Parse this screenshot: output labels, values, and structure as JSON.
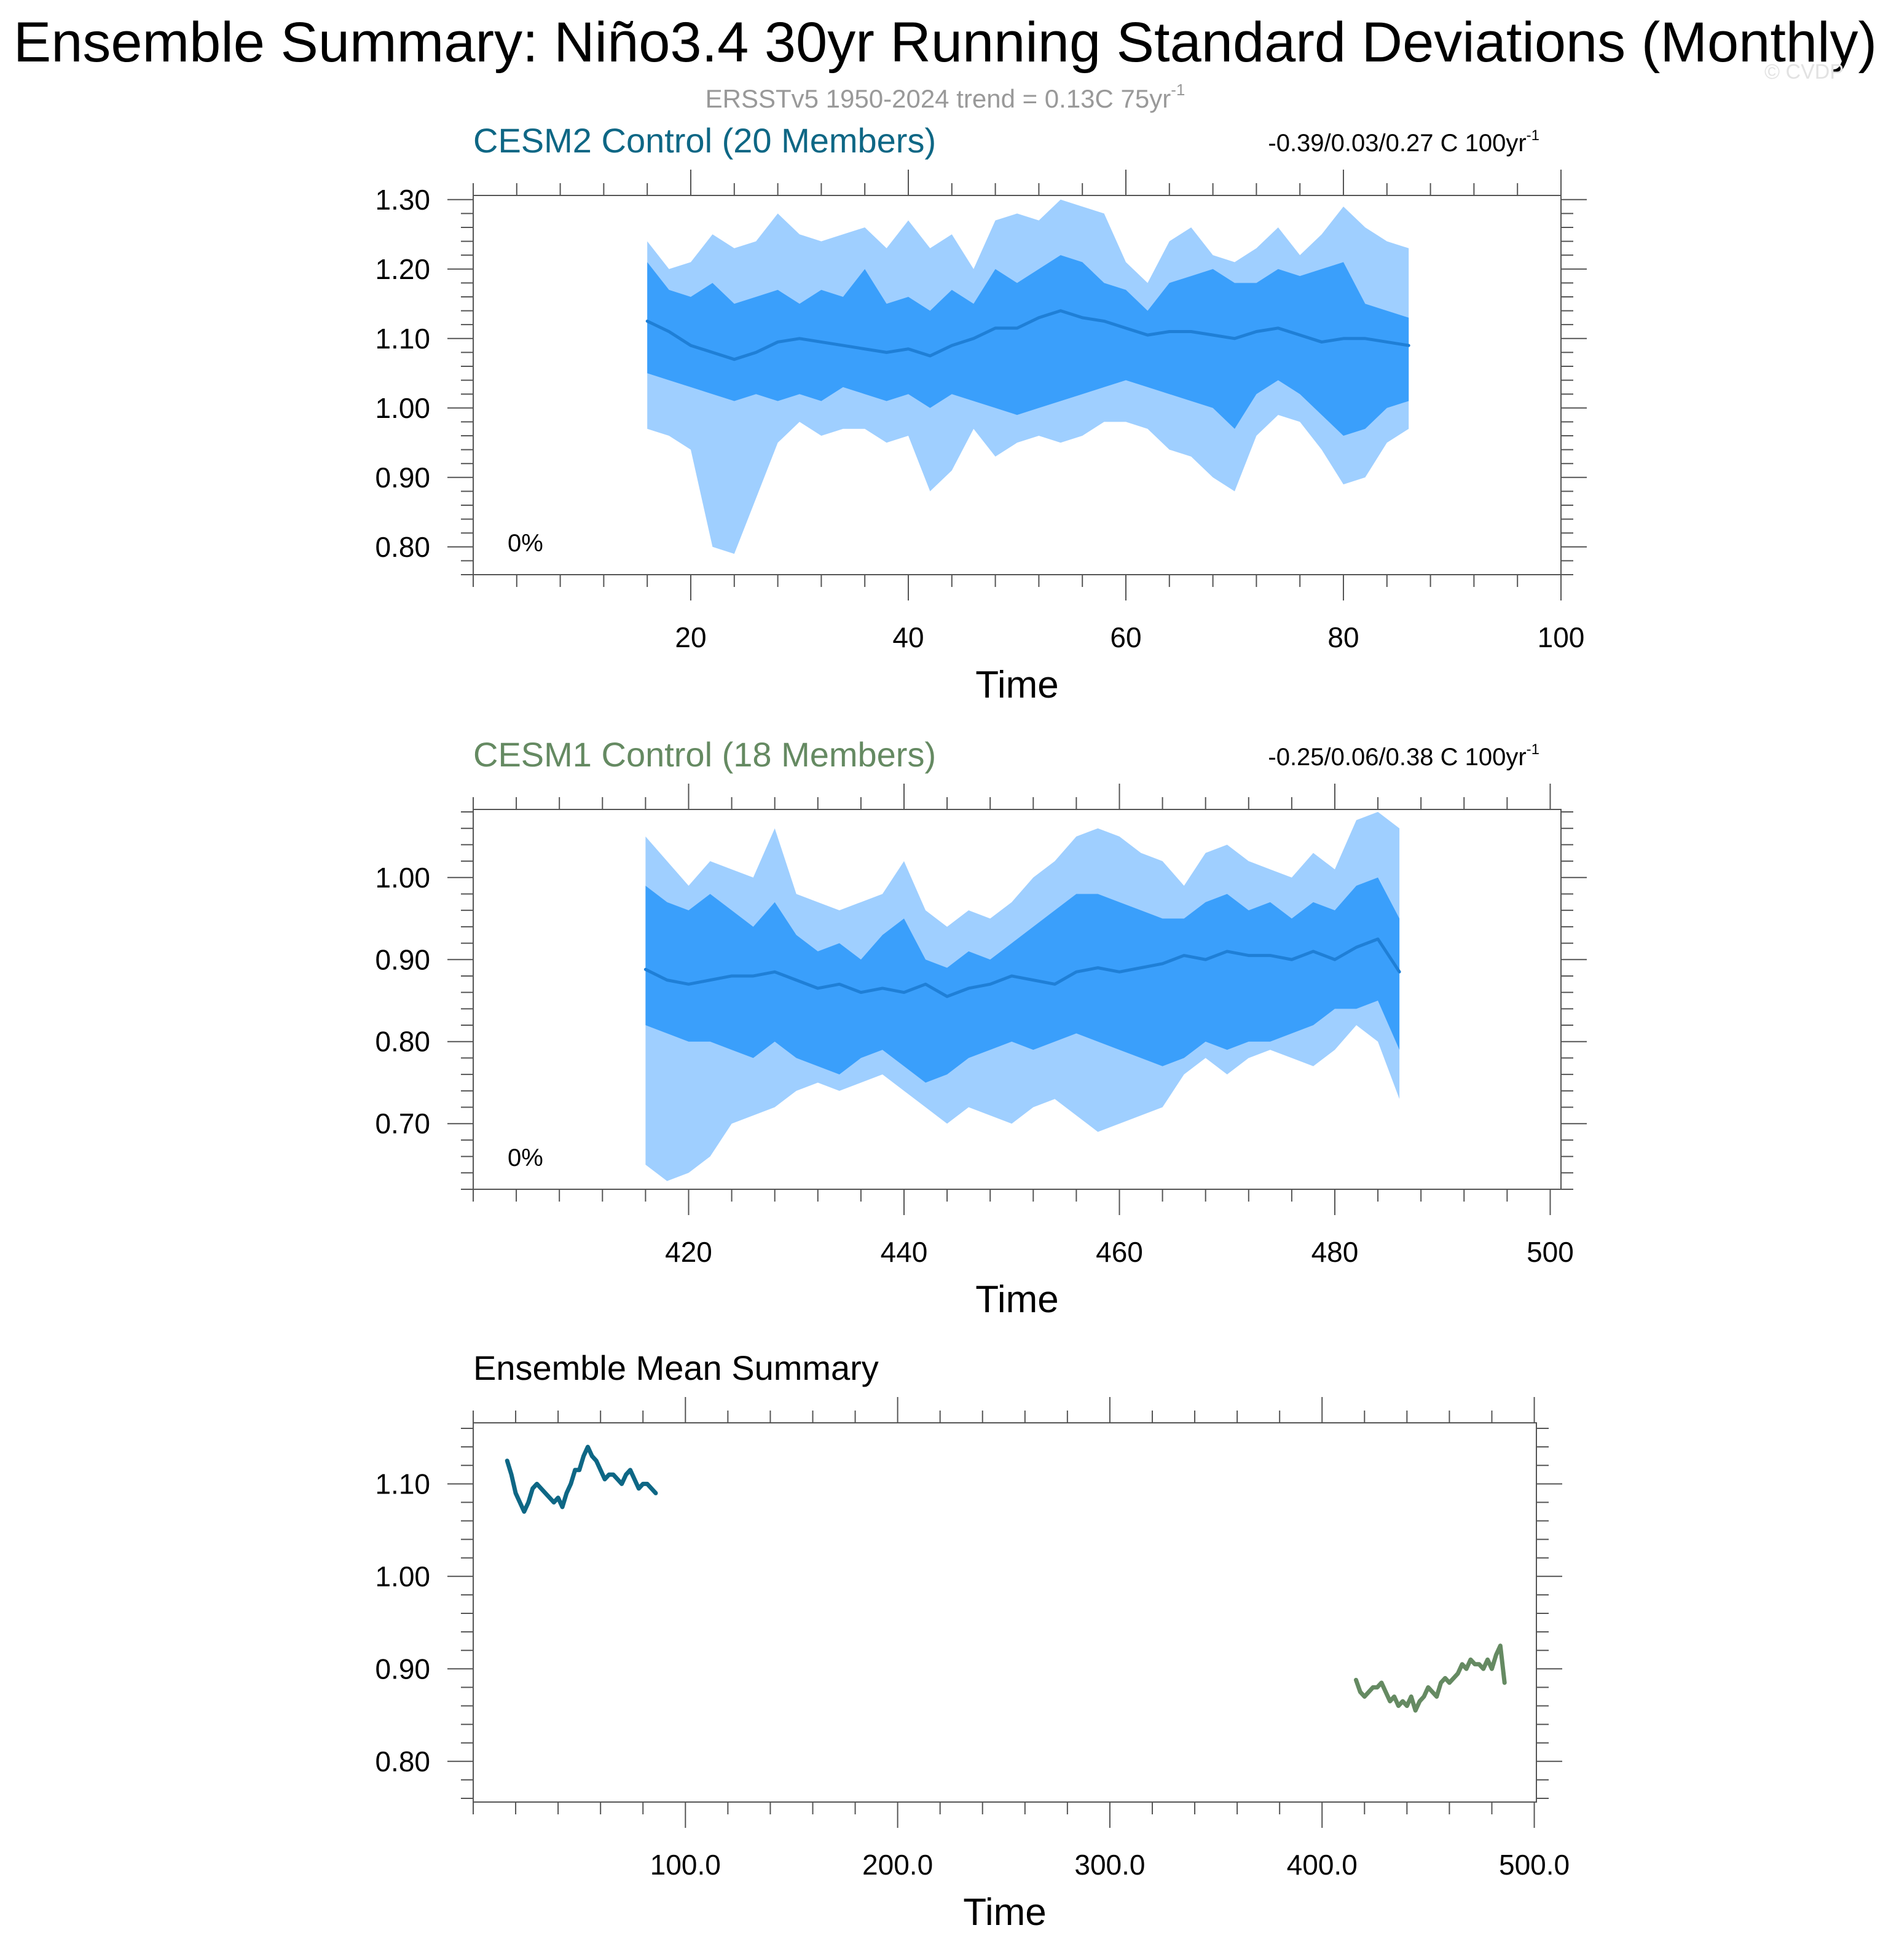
{
  "page": {
    "title": "Ensemble Summary: Niño3.4 30yr Running Standard Deviations (Monthly)",
    "subtitle": "ERSSTv5 1950-2024 trend = 0.13C 75yr",
    "subtitle_sup": "-1",
    "watermark": "© CVDP"
  },
  "colors": {
    "outer_band": "#9fcfff",
    "inner_band": "#3a9ffb",
    "mean_line": "#1f7fd6",
    "cesm2": "#0e6785",
    "cesm1": "#658a62",
    "axis": "#555555",
    "subtitle": "#999999"
  },
  "chart_data": [
    {
      "id": "cesm2",
      "type": "area",
      "title": "CESM2 Control (20 Members)",
      "trend_text": "-0.39/0.03/0.27 C 100yr",
      "trend_sup": "-1",
      "percent_label": "0%",
      "xlabel": "Time",
      "ylabel": "",
      "xlim": [
        0,
        100
      ],
      "ylim": [
        0.76,
        1.306
      ],
      "xticks": [
        20,
        40,
        60,
        80,
        100
      ],
      "yticks": [
        0.8,
        0.9,
        1.0,
        1.1,
        1.2,
        1.3
      ],
      "ytick_labels": [
        "0.80",
        "0.90",
        "1.00",
        "1.10",
        "1.20",
        "1.30"
      ],
      "series": [
        {
          "role": "outer_band",
          "x": [
            16,
            18,
            20,
            22,
            24,
            26,
            28,
            30,
            32,
            34,
            36,
            38,
            40,
            42,
            44,
            46,
            48,
            50,
            52,
            54,
            56,
            58,
            60,
            62,
            64,
            66,
            68,
            70,
            72,
            74,
            76,
            78,
            80,
            82,
            84,
            86
          ],
          "upper": [
            1.24,
            1.2,
            1.21,
            1.25,
            1.23,
            1.24,
            1.28,
            1.25,
            1.24,
            1.25,
            1.26,
            1.23,
            1.27,
            1.23,
            1.25,
            1.2,
            1.27,
            1.28,
            1.27,
            1.3,
            1.29,
            1.28,
            1.21,
            1.18,
            1.24,
            1.26,
            1.22,
            1.21,
            1.23,
            1.26,
            1.22,
            1.25,
            1.29,
            1.26,
            1.24,
            1.23
          ],
          "lower": [
            0.97,
            0.96,
            0.94,
            0.8,
            0.79,
            0.87,
            0.95,
            0.98,
            0.96,
            0.97,
            0.97,
            0.95,
            0.96,
            0.88,
            0.91,
            0.97,
            0.93,
            0.95,
            0.96,
            0.95,
            0.96,
            0.98,
            0.98,
            0.97,
            0.94,
            0.93,
            0.9,
            0.88,
            0.96,
            0.99,
            0.98,
            0.94,
            0.89,
            0.9,
            0.95,
            0.97
          ]
        },
        {
          "role": "inner_band",
          "x": [
            16,
            18,
            20,
            22,
            24,
            26,
            28,
            30,
            32,
            34,
            36,
            38,
            40,
            42,
            44,
            46,
            48,
            50,
            52,
            54,
            56,
            58,
            60,
            62,
            64,
            66,
            68,
            70,
            72,
            74,
            76,
            78,
            80,
            82,
            84,
            86
          ],
          "upper": [
            1.21,
            1.17,
            1.16,
            1.18,
            1.15,
            1.16,
            1.17,
            1.15,
            1.17,
            1.16,
            1.2,
            1.15,
            1.16,
            1.14,
            1.17,
            1.15,
            1.2,
            1.18,
            1.2,
            1.22,
            1.21,
            1.18,
            1.17,
            1.14,
            1.18,
            1.19,
            1.2,
            1.18,
            1.18,
            1.2,
            1.19,
            1.2,
            1.21,
            1.15,
            1.14,
            1.13
          ],
          "lower": [
            1.05,
            1.04,
            1.03,
            1.02,
            1.01,
            1.02,
            1.01,
            1.02,
            1.01,
            1.03,
            1.02,
            1.01,
            1.02,
            1.0,
            1.02,
            1.01,
            1.0,
            0.99,
            1.0,
            1.01,
            1.02,
            1.03,
            1.04,
            1.03,
            1.02,
            1.01,
            1.0,
            0.97,
            1.02,
            1.04,
            1.02,
            0.99,
            0.96,
            0.97,
            1.0,
            1.01
          ]
        },
        {
          "role": "mean_line",
          "name": "",
          "x": [
            16,
            18,
            20,
            22,
            24,
            26,
            28,
            30,
            32,
            34,
            36,
            38,
            40,
            42,
            44,
            46,
            48,
            50,
            52,
            54,
            56,
            58,
            60,
            62,
            64,
            66,
            68,
            70,
            72,
            74,
            76,
            78,
            80,
            82,
            84,
            86
          ],
          "values": [
            1.125,
            1.11,
            1.09,
            1.08,
            1.07,
            1.08,
            1.095,
            1.1,
            1.095,
            1.09,
            1.085,
            1.08,
            1.085,
            1.075,
            1.09,
            1.1,
            1.115,
            1.115,
            1.13,
            1.14,
            1.13,
            1.125,
            1.115,
            1.105,
            1.11,
            1.11,
            1.105,
            1.1,
            1.11,
            1.115,
            1.105,
            1.095,
            1.1,
            1.1,
            1.095,
            1.09
          ]
        }
      ]
    },
    {
      "id": "cesm1",
      "type": "area",
      "title": "CESM1 Control (18 Members)",
      "trend_text": "-0.25/0.06/0.38 C 100yr",
      "trend_sup": "-1",
      "percent_label": "0%",
      "xlabel": "Time",
      "ylabel": "",
      "xlim": [
        400,
        501
      ],
      "ylim": [
        0.62,
        1.083
      ],
      "xticks": [
        420,
        440,
        460,
        480,
        500
      ],
      "yticks": [
        0.7,
        0.8,
        0.9,
        1.0
      ],
      "ytick_labels": [
        "0.70",
        "0.80",
        "0.90",
        "1.00"
      ],
      "series": [
        {
          "role": "outer_band",
          "x": [
            416,
            418,
            420,
            422,
            424,
            426,
            428,
            430,
            432,
            434,
            436,
            438,
            440,
            442,
            444,
            446,
            448,
            450,
            452,
            454,
            456,
            458,
            460,
            462,
            464,
            466,
            468,
            470,
            472,
            474,
            476,
            478,
            480,
            482,
            484,
            486
          ],
          "upper": [
            1.05,
            1.02,
            0.99,
            1.02,
            1.01,
            1.0,
            1.06,
            0.98,
            0.97,
            0.96,
            0.97,
            0.98,
            1.02,
            0.96,
            0.94,
            0.96,
            0.95,
            0.97,
            1.0,
            1.02,
            1.05,
            1.06,
            1.05,
            1.03,
            1.02,
            0.99,
            1.03,
            1.04,
            1.02,
            1.01,
            1.0,
            1.03,
            1.01,
            1.07,
            1.08,
            1.06
          ],
          "lower": [
            0.65,
            0.63,
            0.64,
            0.66,
            0.7,
            0.71,
            0.72,
            0.74,
            0.75,
            0.74,
            0.75,
            0.76,
            0.74,
            0.72,
            0.7,
            0.72,
            0.71,
            0.7,
            0.72,
            0.73,
            0.71,
            0.69,
            0.7,
            0.71,
            0.72,
            0.76,
            0.78,
            0.76,
            0.78,
            0.79,
            0.78,
            0.77,
            0.79,
            0.82,
            0.8,
            0.73
          ]
        },
        {
          "role": "inner_band",
          "x": [
            416,
            418,
            420,
            422,
            424,
            426,
            428,
            430,
            432,
            434,
            436,
            438,
            440,
            442,
            444,
            446,
            448,
            450,
            452,
            454,
            456,
            458,
            460,
            462,
            464,
            466,
            468,
            470,
            472,
            474,
            476,
            478,
            480,
            482,
            484,
            486
          ],
          "upper": [
            0.99,
            0.97,
            0.96,
            0.98,
            0.96,
            0.94,
            0.97,
            0.93,
            0.91,
            0.92,
            0.9,
            0.93,
            0.95,
            0.9,
            0.89,
            0.91,
            0.9,
            0.92,
            0.94,
            0.96,
            0.98,
            0.98,
            0.97,
            0.96,
            0.95,
            0.95,
            0.97,
            0.98,
            0.96,
            0.97,
            0.95,
            0.97,
            0.96,
            0.99,
            1.0,
            0.95
          ],
          "lower": [
            0.82,
            0.81,
            0.8,
            0.8,
            0.79,
            0.78,
            0.8,
            0.78,
            0.77,
            0.76,
            0.78,
            0.79,
            0.77,
            0.75,
            0.76,
            0.78,
            0.79,
            0.8,
            0.79,
            0.8,
            0.81,
            0.8,
            0.79,
            0.78,
            0.77,
            0.78,
            0.8,
            0.79,
            0.8,
            0.8,
            0.81,
            0.82,
            0.84,
            0.84,
            0.85,
            0.79
          ]
        },
        {
          "role": "mean_line",
          "name": "",
          "x": [
            416,
            418,
            420,
            422,
            424,
            426,
            428,
            430,
            432,
            434,
            436,
            438,
            440,
            442,
            444,
            446,
            448,
            450,
            452,
            454,
            456,
            458,
            460,
            462,
            464,
            466,
            468,
            470,
            472,
            474,
            476,
            478,
            480,
            482,
            484,
            486
          ],
          "values": [
            0.888,
            0.875,
            0.87,
            0.875,
            0.88,
            0.88,
            0.885,
            0.875,
            0.865,
            0.87,
            0.86,
            0.865,
            0.86,
            0.87,
            0.855,
            0.865,
            0.87,
            0.88,
            0.875,
            0.87,
            0.885,
            0.89,
            0.885,
            0.89,
            0.895,
            0.905,
            0.9,
            0.91,
            0.905,
            0.905,
            0.9,
            0.91,
            0.9,
            0.915,
            0.925,
            0.885
          ]
        }
      ]
    },
    {
      "id": "ensmean",
      "type": "line",
      "title": "Ensemble Mean Summary",
      "xlabel": "Time",
      "ylabel": "",
      "xlim": [
        0,
        501
      ],
      "ylim": [
        0.756,
        1.166
      ],
      "xticks": [
        100,
        200,
        300,
        400,
        500
      ],
      "xtick_labels": [
        "100.0",
        "200.0",
        "300.0",
        "400.0",
        "500.0"
      ],
      "yticks": [
        0.8,
        0.9,
        1.0,
        1.1
      ],
      "ytick_labels": [
        "0.80",
        "0.90",
        "1.00",
        "1.10"
      ],
      "series": [
        {
          "name": "",
          "color_key": "cesm2",
          "x": [
            16,
            18,
            20,
            22,
            24,
            26,
            28,
            30,
            32,
            34,
            36,
            38,
            40,
            42,
            44,
            46,
            48,
            50,
            52,
            54,
            56,
            58,
            60,
            62,
            64,
            66,
            68,
            70,
            72,
            74,
            76,
            78,
            80,
            82,
            84,
            86
          ],
          "values": [
            1.125,
            1.11,
            1.09,
            1.08,
            1.07,
            1.08,
            1.095,
            1.1,
            1.095,
            1.09,
            1.085,
            1.08,
            1.085,
            1.075,
            1.09,
            1.1,
            1.115,
            1.115,
            1.13,
            1.14,
            1.13,
            1.125,
            1.115,
            1.105,
            1.11,
            1.11,
            1.105,
            1.1,
            1.11,
            1.115,
            1.105,
            1.095,
            1.1,
            1.1,
            1.095,
            1.09
          ]
        },
        {
          "name": "",
          "color_key": "cesm1",
          "x": [
            416,
            418,
            420,
            422,
            424,
            426,
            428,
            430,
            432,
            434,
            436,
            438,
            440,
            442,
            444,
            446,
            448,
            450,
            452,
            454,
            456,
            458,
            460,
            462,
            464,
            466,
            468,
            470,
            472,
            474,
            476,
            478,
            480,
            482,
            484,
            486
          ],
          "values": [
            0.888,
            0.875,
            0.87,
            0.875,
            0.88,
            0.88,
            0.885,
            0.875,
            0.865,
            0.87,
            0.86,
            0.865,
            0.86,
            0.87,
            0.855,
            0.865,
            0.87,
            0.88,
            0.875,
            0.87,
            0.885,
            0.89,
            0.885,
            0.89,
            0.895,
            0.905,
            0.9,
            0.91,
            0.905,
            0.905,
            0.9,
            0.91,
            0.9,
            0.915,
            0.925,
            0.885
          ]
        }
      ]
    }
  ]
}
